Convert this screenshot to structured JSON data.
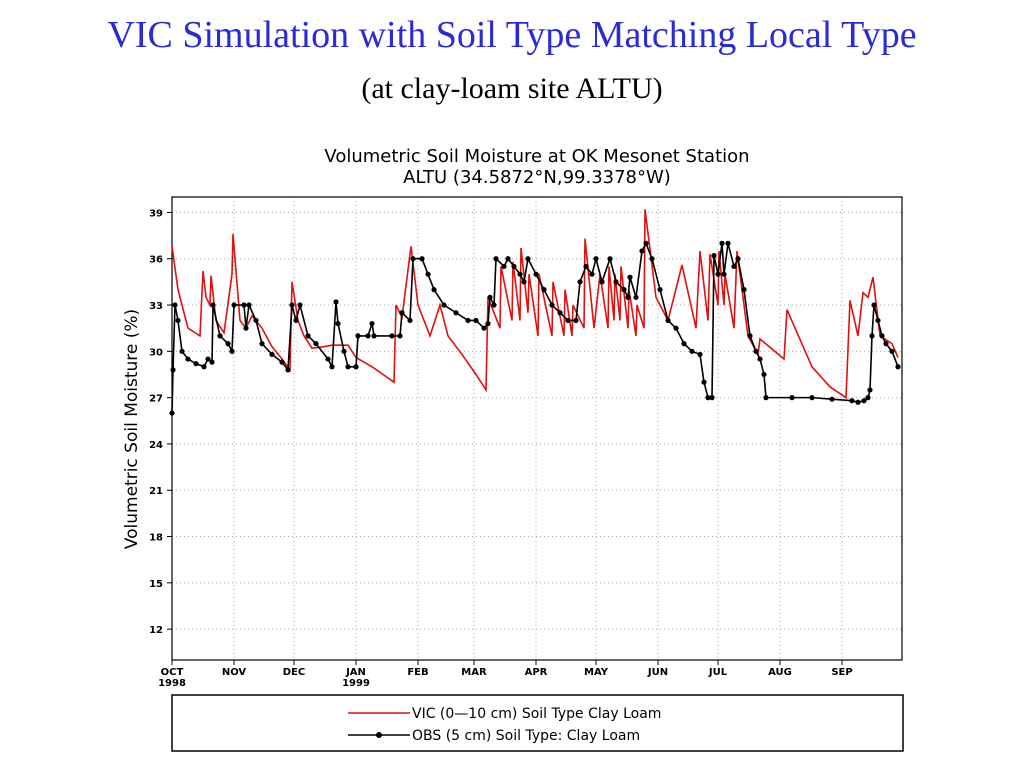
{
  "slide_title": "VIC Simulation with Soil Type Matching Local Type",
  "slide_subtitle": "(at clay-loam site ALTU)",
  "chart_data": {
    "type": "line",
    "title": "Volumetric Soil Moisture at OK Mesonet Station",
    "subtitle": "ALTU (34.5872°N,99.3378°W)",
    "y_label": "Volumetric Soil Moisture (%)",
    "xlim": [
      0,
      365
    ],
    "ylim": [
      10,
      40
    ],
    "xticks": [
      {
        "value": 0,
        "label": "OCT 1998"
      },
      {
        "value": 31,
        "label": "NOV"
      },
      {
        "value": 61,
        "label": "DEC"
      },
      {
        "value": 92,
        "label": "JAN 1999"
      },
      {
        "value": 123,
        "label": "FEB"
      },
      {
        "value": 151,
        "label": "MAR"
      },
      {
        "value": 182,
        "label": "APR"
      },
      {
        "value": 212,
        "label": "MAY"
      },
      {
        "value": 243,
        "label": "JUN"
      },
      {
        "value": 273,
        "label": "JUL"
      },
      {
        "value": 304,
        "label": "AUG"
      },
      {
        "value": 335,
        "label": "SEP"
      }
    ],
    "yticks": [
      12,
      15,
      18,
      21,
      24,
      27,
      30,
      33,
      36,
      39
    ],
    "grid": true,
    "series": [
      {
        "name": "VIC (0—10 cm) Soil Type Clay Loam",
        "color": "#e01010",
        "markers": false,
        "x": [
          0,
          3,
          8,
          14,
          15.5,
          17,
          19,
          19.5,
          22,
          26,
          30,
          30.5,
          34,
          37,
          40,
          45,
          50,
          55,
          59,
          60,
          63,
          66,
          70,
          76,
          80,
          84,
          88,
          92,
          100,
          111,
          112,
          115,
          119.5,
          123,
          129,
          134,
          138,
          145,
          152,
          157,
          158,
          164,
          164.5,
          170,
          170.5,
          174,
          174.5,
          178,
          178.5,
          183,
          183.5,
          190,
          190.5,
          196,
          196.5,
          200,
          200.5,
          206,
          206.5,
          211,
          214,
          218,
          218.5,
          221,
          221.5,
          224,
          224.5,
          228,
          228.5,
          232,
          232.5,
          236,
          236.5,
          242,
          248,
          255,
          262,
          264,
          268,
          269,
          273,
          273.5,
          276,
          276.5,
          281,
          282.5,
          288,
          293,
          294,
          306,
          307.5,
          320,
          329,
          337,
          339,
          343,
          345.5,
          348,
          350.5,
          354,
          360,
          363
        ],
        "values": [
          36.8,
          34,
          31.5,
          31,
          35.2,
          33.5,
          33,
          34.9,
          32,
          31.2,
          35,
          37.6,
          32,
          31.5,
          32.3,
          31.5,
          30.3,
          29.5,
          28.8,
          34.5,
          32,
          31,
          30.2,
          30.3,
          30.4,
          30.4,
          30.4,
          29.6,
          29,
          28,
          33,
          32.2,
          36.8,
          33,
          31,
          33,
          31,
          29.8,
          28.5,
          27.5,
          33.5,
          31.5,
          35.5,
          32,
          35.8,
          32,
          36.7,
          32.5,
          35,
          31,
          35,
          31,
          34.5,
          31,
          34,
          31,
          33,
          31.5,
          37.3,
          31.5,
          35,
          31.5,
          35.5,
          32,
          35,
          32,
          35.5,
          31.5,
          34,
          31,
          33,
          31.5,
          39.2,
          33.5,
          32,
          35.6,
          31.5,
          36.5,
          32,
          36.3,
          33,
          36.5,
          33,
          35,
          31.5,
          36.5,
          31,
          29.8,
          30.8,
          29.5,
          32.7,
          29,
          27.7,
          27,
          33.3,
          31,
          33.8,
          33.5,
          34.8,
          31,
          30.5,
          29.6
        ]
      },
      {
        "name": "OBS (5 cm) Soil Type: Clay Loam",
        "color": "#000000",
        "markers": true,
        "x": [
          0,
          0.5,
          1.5,
          3,
          5,
          8,
          12,
          16,
          18,
          20,
          20.5,
          24,
          28,
          30,
          31,
          36,
          37,
          38.5,
          42,
          45,
          50,
          55,
          58,
          60,
          62,
          64,
          68,
          72,
          78,
          80,
          82,
          83,
          86,
          88,
          92,
          93,
          98,
          100,
          101,
          110,
          114,
          115,
          119,
          120.5,
          125,
          128,
          131,
          136,
          142,
          148,
          152,
          156,
          158,
          159,
          161,
          162,
          166,
          168,
          171,
          174,
          176,
          178,
          182,
          186,
          190,
          194,
          198,
          202,
          204,
          207,
          210,
          212,
          215,
          219,
          222,
          226,
          228,
          229,
          232,
          235,
          237,
          240,
          244,
          248,
          252,
          256,
          260,
          264,
          266,
          268,
          270,
          271,
          273,
          275,
          276,
          278,
          281,
          283,
          286,
          289,
          292,
          294,
          296,
          297,
          310,
          320,
          330,
          340,
          343,
          346,
          348,
          349,
          350,
          351,
          353,
          355,
          357,
          360,
          363
        ],
        "values": [
          26,
          28.8,
          33,
          32,
          30,
          29.5,
          29.2,
          29,
          29.5,
          29.3,
          33,
          31,
          30.5,
          30,
          33,
          33,
          31.5,
          33,
          32,
          30.5,
          29.8,
          29.3,
          28.8,
          33,
          32,
          33,
          31,
          30.5,
          29.5,
          29,
          33.2,
          31.8,
          30,
          29,
          29,
          31,
          31,
          31.8,
          31,
          31,
          31,
          32.5,
          32,
          36,
          36,
          35,
          34,
          33,
          32.5,
          32,
          32,
          31.5,
          31.8,
          33.5,
          33,
          36,
          35.5,
          36,
          35.5,
          35,
          34.5,
          36,
          35,
          34,
          33,
          32.5,
          32,
          32,
          34.5,
          35.5,
          35,
          36,
          34.5,
          36,
          34.5,
          34,
          33.5,
          34.8,
          33.5,
          36.5,
          37,
          36,
          34,
          32,
          31.5,
          30.5,
          30,
          29.8,
          28,
          27,
          27,
          36.2,
          35,
          37,
          35,
          37,
          35.5,
          36,
          34,
          31,
          30,
          29.5,
          28.5,
          27,
          27,
          27,
          26.9,
          26.8,
          26.7,
          26.8,
          27,
          27.5,
          31,
          33,
          32,
          31,
          30.5,
          30,
          29
        ]
      }
    ]
  }
}
